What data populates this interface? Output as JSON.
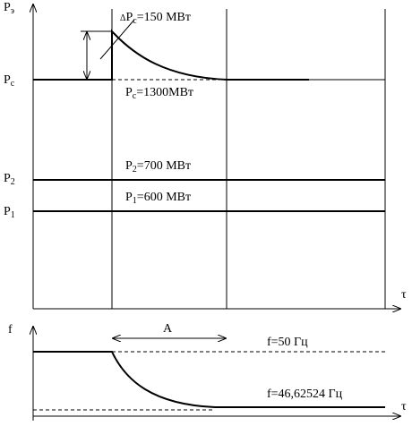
{
  "upper": {
    "y_label": {
      "main": "P",
      "sub": "э"
    },
    "x_label": "τ",
    "pc_axis": {
      "main": "P",
      "sub": "c"
    },
    "p2_axis": {
      "main": "P",
      "sub": "2"
    },
    "p1_axis": {
      "main": "P",
      "sub": "1"
    },
    "delta_annotation": {
      "prefix": "Δ",
      "main": "P",
      "sub": "c",
      "rest": "=150 МВт"
    },
    "pc_annotation": {
      "main": "P",
      "sub": "c",
      "rest": "=1300МВт"
    },
    "p2_annotation": {
      "main": "P",
      "sub": "2",
      "rest": "=700 МВт"
    },
    "p1_annotation": {
      "main": "P",
      "sub": "1",
      "rest": "=600 МВт"
    }
  },
  "lower": {
    "y_label": "f",
    "x_label": "τ",
    "interval_label": "A",
    "f_initial": "f=50 Гц",
    "f_final": "f=46,62524 Гц"
  }
}
